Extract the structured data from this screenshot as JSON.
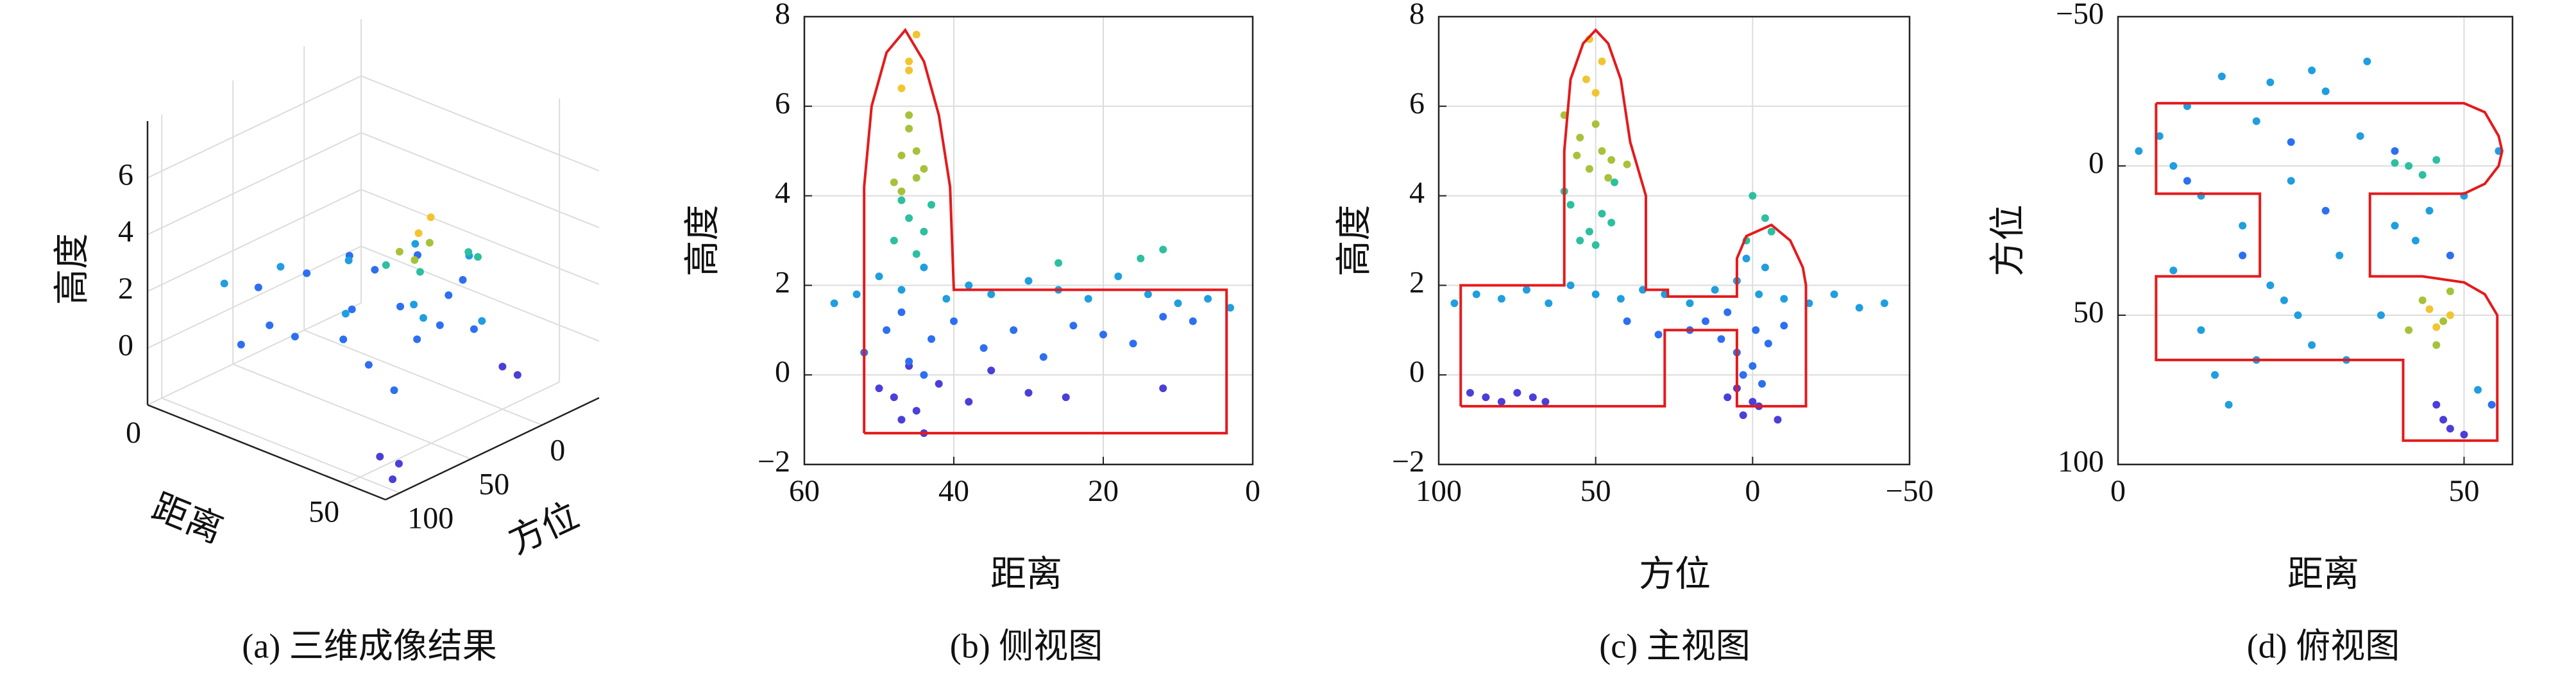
{
  "chart_data": [
    {
      "type": "scatter3d",
      "caption": "(a) 三维成像结果",
      "xlabel": "距离",
      "ylabel": "方位",
      "zlabel": "高度",
      "xlim": [
        0,
        60
      ],
      "ylim": [
        110,
        -40
      ],
      "zlim": [
        -2,
        8
      ],
      "xticks": [
        0,
        50
      ],
      "yticks": [
        0,
        50,
        100
      ],
      "zticks": [
        0,
        2,
        4,
        6
      ],
      "grid": true,
      "series": [
        {
          "color": "#2d6ff0",
          "x": [
            10,
            15,
            20,
            25,
            30,
            35,
            40,
            45,
            50,
            55,
            20,
            30,
            40,
            50,
            15,
            25,
            35,
            45
          ],
          "y": [
            60,
            40,
            80,
            20,
            50,
            70,
            10,
            30,
            60,
            90,
            100,
            90,
            0,
            20,
            10,
            -10,
            30,
            80
          ],
          "values": [
            1.5,
            1.8,
            1.2,
            2.0,
            1.6,
            1.3,
            1.7,
            1.4,
            1.9,
            1.1,
            1.0,
            1.6,
            2.0,
            1.3,
            1.7,
            1.8,
            1.5,
            1.2
          ]
        },
        {
          "color": "#1f9ee0",
          "x": [
            5,
            12,
            22,
            32,
            42,
            52,
            28,
            38,
            48
          ],
          "y": [
            70,
            50,
            30,
            60,
            40,
            20,
            0,
            -10,
            50
          ],
          "values": [
            1.6,
            2.1,
            2.4,
            1.8,
            2.2,
            1.7,
            2.6,
            2.5,
            2.3
          ]
        },
        {
          "color": "#4a3fd8",
          "x": [
            55,
            58,
            60,
            50,
            52
          ],
          "y": [
            100,
            95,
            105,
            0,
            -5
          ],
          "values": [
            -1.0,
            -1.2,
            -1.4,
            -0.5,
            -0.8
          ]
        },
        {
          "color": "#2dbfa0",
          "x": [
            40,
            45,
            35,
            42
          ],
          "y": [
            30,
            10,
            40,
            -5
          ],
          "values": [
            3.0,
            3.5,
            3.2,
            2.8
          ]
        },
        {
          "color": "#a6c23a",
          "x": [
            44,
            46,
            42
          ],
          "y": [
            45,
            40,
            50
          ],
          "values": [
            4.0,
            4.6,
            4.3
          ]
        },
        {
          "color": "#f0c530",
          "x": [
            45,
            47
          ],
          "y": [
            45,
            42
          ],
          "values": [
            5.0,
            5.6
          ]
        }
      ]
    },
    {
      "type": "scatter",
      "caption": "(b) 侧视图",
      "xlabel": "距离",
      "ylabel": "高度",
      "xlim": [
        60,
        0
      ],
      "ylim": [
        -2,
        8
      ],
      "xticks": [
        60,
        40,
        20,
        0
      ],
      "yticks": [
        {
          "value": -2,
          "label": "−2"
        },
        0,
        2,
        4,
        6,
        8
      ],
      "grid": true,
      "series": [
        {
          "color": "#4a3fd8",
          "x": [
            48,
            45,
            44,
            50,
            38,
            30,
            25,
            12,
            47,
            42,
            46,
            35
          ],
          "values": [
            -0.5,
            -0.8,
            -1.3,
            -0.3,
            -0.6,
            -0.4,
            -0.5,
            -0.3,
            -1.0,
            -0.2,
            0.2,
            0.1
          ]
        },
        {
          "color": "#2d6ff0",
          "x": [
            52,
            49,
            46,
            43,
            40,
            36,
            32,
            28,
            24,
            20,
            16,
            12,
            8,
            47,
            44
          ],
          "values": [
            0.5,
            1.0,
            0.3,
            0.8,
            1.2,
            0.6,
            1.0,
            0.4,
            1.1,
            0.9,
            0.7,
            1.3,
            1.2,
            1.4,
            0.0
          ]
        },
        {
          "color": "#1f9ee0",
          "x": [
            56,
            53,
            50,
            47,
            44,
            41,
            38,
            35,
            30,
            26,
            22,
            18,
            14,
            10,
            6,
            3
          ],
          "values": [
            1.6,
            1.8,
            2.2,
            1.9,
            2.4,
            1.7,
            2.0,
            1.8,
            2.1,
            1.9,
            1.7,
            2.2,
            1.8,
            1.6,
            1.7,
            1.5
          ]
        },
        {
          "color": "#2dbfa0",
          "x": [
            48,
            46,
            44,
            47,
            45,
            43,
            12,
            15,
            26
          ],
          "values": [
            3.0,
            3.5,
            3.2,
            3.9,
            2.7,
            3.8,
            2.8,
            2.6,
            2.5
          ]
        },
        {
          "color": "#a6c23a",
          "x": [
            48,
            47,
            46,
            45,
            44,
            46,
            47,
            45
          ],
          "values": [
            4.3,
            4.9,
            5.5,
            5.0,
            4.6,
            5.8,
            4.1,
            4.4
          ]
        },
        {
          "color": "#f0c530",
          "x": [
            47,
            46,
            45,
            46
          ],
          "values": [
            6.4,
            7.0,
            7.6,
            6.8
          ]
        }
      ],
      "outline": {
        "color": "#e41a1c",
        "x": [
          52,
          52,
          51,
          49,
          46.5,
          44,
          42,
          40.5,
          40,
          3.5,
          3.5,
          52
        ],
        "values": [
          -1.3,
          4.2,
          6.0,
          7.2,
          7.7,
          7.0,
          5.8,
          4.2,
          1.9,
          1.9,
          -1.3,
          -1.3
        ]
      }
    },
    {
      "type": "scatter",
      "caption": "(c) 主视图",
      "xlabel": "方位",
      "ylabel": "高度",
      "xlim": [
        100,
        -50
      ],
      "ylim": [
        -2,
        8
      ],
      "xticks": [
        100,
        50,
        0,
        {
          "value": -50,
          "label": "−50"
        }
      ],
      "yticks": [
        {
          "value": -2,
          "label": "−2"
        },
        0,
        2,
        4,
        6,
        8
      ],
      "grid": true,
      "series": [
        {
          "color": "#4a3fd8",
          "x": [
            90,
            85,
            80,
            75,
            70,
            66,
            8,
            3,
            -2,
            -8,
            5,
            0
          ],
          "values": [
            -0.4,
            -0.5,
            -0.6,
            -0.4,
            -0.5,
            -0.6,
            -0.5,
            -0.9,
            -0.7,
            -1.0,
            -0.3,
            -0.6
          ]
        },
        {
          "color": "#2d6ff0",
          "x": [
            20,
            15,
            10,
            5,
            0,
            -5,
            -10,
            3,
            -3,
            8,
            -1,
            40,
            30
          ],
          "values": [
            1.0,
            1.2,
            0.8,
            0.5,
            0.2,
            0.7,
            1.1,
            0.0,
            -0.2,
            1.4,
            1.0,
            1.2,
            0.9
          ]
        },
        {
          "color": "#1f9ee0",
          "x": [
            95,
            88,
            80,
            72,
            65,
            58,
            50,
            42,
            35,
            28,
            20,
            12,
            5,
            -2,
            -10,
            -18,
            -26,
            -34,
            -42,
            2,
            -4
          ],
          "values": [
            1.6,
            1.8,
            1.7,
            1.9,
            1.6,
            2.0,
            1.8,
            1.7,
            1.9,
            1.8,
            1.6,
            1.9,
            2.1,
            1.8,
            1.7,
            1.6,
            1.8,
            1.5,
            1.6,
            2.6,
            2.4
          ]
        },
        {
          "color": "#2dbfa0",
          "x": [
            52,
            48,
            55,
            45,
            58,
            50,
            2,
            -4,
            0,
            -6,
            44,
            60
          ],
          "values": [
            3.2,
            3.6,
            3.0,
            3.4,
            3.8,
            2.9,
            3.0,
            3.5,
            4.0,
            3.2,
            4.3,
            4.1
          ]
        },
        {
          "color": "#a6c23a",
          "x": [
            52,
            48,
            55,
            45,
            50,
            46,
            56,
            40,
            60
          ],
          "values": [
            4.6,
            5.0,
            5.3,
            4.8,
            5.6,
            4.4,
            4.9,
            4.7,
            5.8
          ]
        },
        {
          "color": "#f0c530",
          "x": [
            50,
            48,
            53,
            52
          ],
          "values": [
            6.3,
            7.0,
            6.6,
            7.5
          ]
        }
      ],
      "outline": {
        "color": "#e41a1c",
        "x": [
          93,
          93,
          60,
          60,
          58,
          54,
          50,
          46,
          42,
          39,
          34,
          34,
          27,
          27,
          5,
          5,
          2,
          -6,
          -12,
          -16,
          -17,
          -17,
          5,
          5,
          28,
          28,
          93
        ],
        "values": [
          -0.7,
          2.0,
          2.0,
          5.0,
          6.6,
          7.4,
          7.7,
          7.4,
          6.6,
          5.2,
          4.0,
          1.9,
          1.9,
          1.75,
          1.75,
          2.6,
          3.1,
          3.35,
          3.0,
          2.4,
          2.0,
          -0.7,
          -0.7,
          1.0,
          1.0,
          -0.7,
          -0.7
        ]
      }
    },
    {
      "type": "scatter",
      "caption": "(d) 俯视图",
      "xlabel": "距离",
      "ylabel": "方位",
      "xlim": [
        0,
        57
      ],
      "ylim": [
        100,
        -50
      ],
      "xticks": [
        0,
        50
      ],
      "yticks": [
        100,
        50,
        0,
        {
          "value": -50,
          "label": "−50"
        }
      ],
      "grid": true,
      "series": [
        {
          "color": "#1f9ee0",
          "x": [
            3,
            8,
            10,
            12,
            15,
            18,
            20,
            22,
            25,
            28,
            30,
            32,
            35,
            38,
            40,
            14,
            16,
            24,
            28,
            33,
            45,
            50,
            55,
            8,
            12,
            20,
            26,
            36,
            43,
            52,
            6,
            22
          ],
          "values": [
            -5,
            0,
            -20,
            10,
            -30,
            20,
            -15,
            40,
            5,
            60,
            -25,
            30,
            -10,
            50,
            20,
            70,
            80,
            45,
            -32,
            65,
            15,
            10,
            -5,
            35,
            55,
            65,
            50,
            -35,
            25,
            75,
            -10,
            -28
          ]
        },
        {
          "color": "#2d6ff0",
          "x": [
            10,
            18,
            30,
            40,
            48,
            54,
            25
          ],
          "values": [
            5,
            30,
            15,
            -5,
            30,
            80,
            -8
          ]
        },
        {
          "color": "#2dbfa0",
          "x": [
            42,
            46,
            44,
            40
          ],
          "values": [
            0,
            -2,
            3,
            -1
          ]
        },
        {
          "color": "#a6c23a",
          "x": [
            44,
            47,
            42,
            46,
            48
          ],
          "values": [
            45,
            52,
            55,
            60,
            42
          ]
        },
        {
          "color": "#f0c530",
          "x": [
            45,
            48,
            46
          ],
          "values": [
            48,
            50,
            54
          ]
        },
        {
          "color": "#4a3fd8",
          "x": [
            47,
            48,
            46,
            50
          ],
          "values": [
            85,
            88,
            80,
            90
          ]
        }
      ],
      "outline": {
        "color": "#e41a1c",
        "x": [
          5.5,
          50,
          53,
          55,
          55.5,
          55,
          53,
          50,
          36.4,
          36.4,
          44,
          50,
          53,
          54.8,
          54.8,
          41.2,
          41.2,
          5.5,
          5.5,
          20.5,
          20.5,
          5.5,
          5.5
        ],
        "values": [
          -21,
          -21,
          -18,
          -10,
          -5,
          0,
          6,
          9.3,
          9.3,
          37,
          37,
          39,
          43,
          50,
          92,
          92,
          65,
          65,
          37,
          37,
          9.3,
          9.3,
          -21
        ]
      }
    }
  ]
}
